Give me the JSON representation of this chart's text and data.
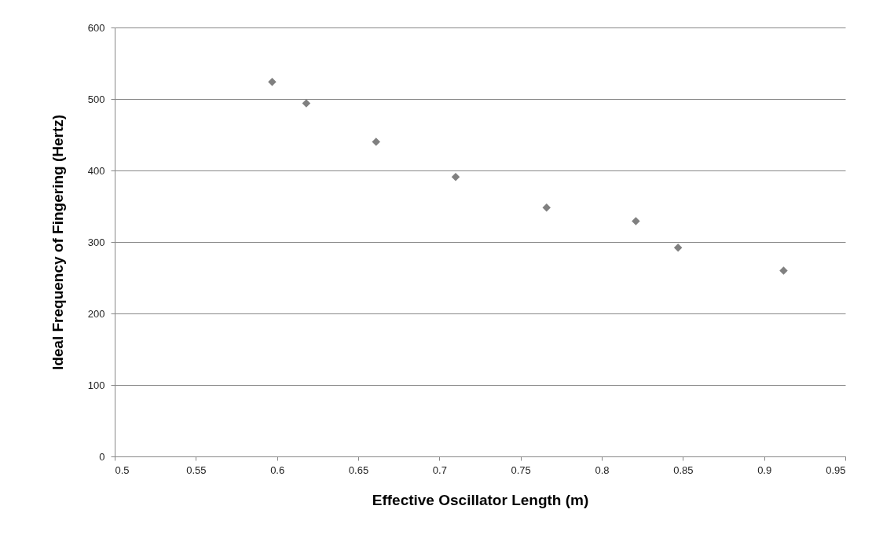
{
  "chart_data": {
    "type": "scatter",
    "xlabel": "Effective Oscillator Length (m)",
    "ylabel": "Ideal Frequency of Fingering (Hertz)",
    "x": [
      0.597,
      0.618,
      0.661,
      0.71,
      0.766,
      0.821,
      0.847,
      0.912
    ],
    "series": [
      {
        "color": "#808080",
        "values": [
          524,
          494,
          440,
          391,
          348,
          329,
          292,
          260
        ]
      }
    ],
    "xlim": [
      0.5,
      0.95
    ],
    "xticks": [
      0.5,
      0.55,
      0.6,
      0.65,
      0.7,
      0.75,
      0.8,
      0.85,
      0.9,
      0.95
    ],
    "ylim": [
      0,
      600
    ],
    "yticks": [
      0,
      100,
      200,
      300,
      400,
      500,
      600
    ],
    "grid": "y",
    "marker": "diamond",
    "legend": false
  }
}
